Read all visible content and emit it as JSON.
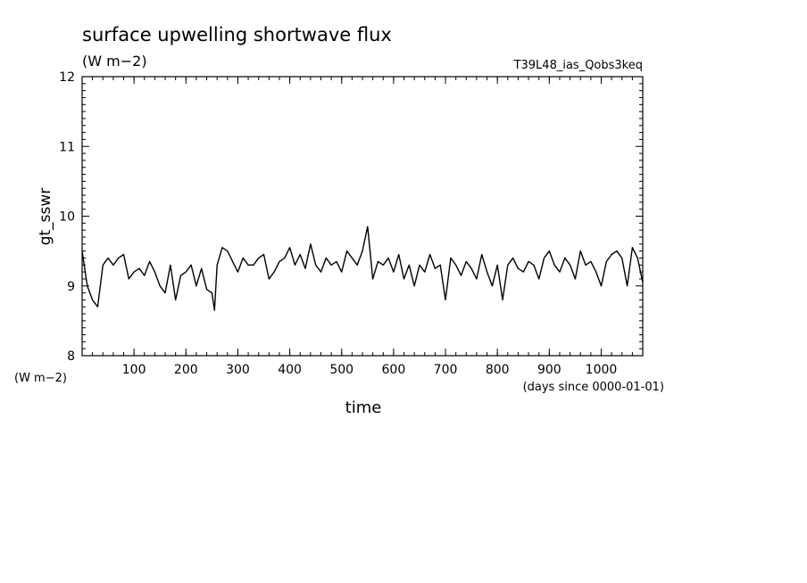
{
  "chart_data": {
    "type": "line",
    "title": "surface upwelling shortwave flux",
    "subtitle_units": "(W m−2)",
    "run_label": "T39L48_ias_Qobs3keq",
    "ylabel": "gt_sswr",
    "yunits": "(W m−2)",
    "xlabel": "time",
    "xunits": "(days since 0000-01-01)",
    "xlim": [
      0,
      1080
    ],
    "ylim": [
      8,
      12
    ],
    "xticks": [
      100,
      200,
      300,
      400,
      500,
      600,
      700,
      800,
      900,
      1000
    ],
    "xtick_labels": [
      "100",
      "200",
      "300",
      "400",
      "500",
      "600",
      "700",
      "800",
      "900",
      "1000"
    ],
    "yticks": [
      8,
      9,
      10,
      11,
      12
    ],
    "ytick_labels": [
      "8",
      "9",
      "10",
      "11",
      "12"
    ],
    "grid": false,
    "series": [
      {
        "color": "#000000",
        "x": [
          0,
          10,
          20,
          30,
          40,
          50,
          60,
          70,
          80,
          90,
          100,
          110,
          120,
          130,
          140,
          150,
          160,
          170,
          180,
          190,
          200,
          210,
          220,
          230,
          240,
          250,
          255,
          260,
          270,
          280,
          290,
          300,
          310,
          320,
          330,
          340,
          350,
          360,
          370,
          380,
          390,
          400,
          410,
          420,
          430,
          440,
          450,
          460,
          470,
          480,
          490,
          500,
          510,
          520,
          530,
          540,
          550,
          560,
          570,
          580,
          590,
          600,
          610,
          620,
          630,
          640,
          650,
          660,
          670,
          680,
          690,
          700,
          710,
          720,
          730,
          740,
          750,
          760,
          770,
          780,
          790,
          800,
          810,
          820,
          830,
          840,
          850,
          860,
          870,
          880,
          890,
          900,
          910,
          920,
          930,
          940,
          950,
          960,
          970,
          980,
          990,
          1000,
          1010,
          1020,
          1030,
          1040,
          1050,
          1060,
          1070,
          1080
        ],
        "y": [
          9.5,
          9.0,
          8.8,
          8.7,
          9.3,
          9.4,
          9.3,
          9.4,
          9.45,
          9.1,
          9.2,
          9.25,
          9.15,
          9.35,
          9.2,
          9.0,
          8.9,
          9.3,
          8.8,
          9.15,
          9.2,
          9.3,
          9.0,
          9.25,
          8.95,
          8.9,
          8.65,
          9.3,
          9.55,
          9.5,
          9.35,
          9.2,
          9.4,
          9.3,
          9.3,
          9.4,
          9.45,
          9.1,
          9.2,
          9.35,
          9.4,
          9.55,
          9.3,
          9.45,
          9.25,
          9.6,
          9.3,
          9.2,
          9.4,
          9.3,
          9.35,
          9.2,
          9.5,
          9.4,
          9.3,
          9.5,
          9.85,
          9.1,
          9.35,
          9.3,
          9.4,
          9.2,
          9.45,
          9.1,
          9.3,
          9.0,
          9.3,
          9.2,
          9.45,
          9.25,
          9.3,
          8.8,
          9.4,
          9.3,
          9.15,
          9.35,
          9.25,
          9.1,
          9.45,
          9.2,
          9.0,
          9.3,
          8.8,
          9.3,
          9.4,
          9.25,
          9.2,
          9.35,
          9.3,
          9.1,
          9.4,
          9.5,
          9.3,
          9.2,
          9.4,
          9.3,
          9.1,
          9.5,
          9.3,
          9.35,
          9.2,
          9.0,
          9.35,
          9.45,
          9.5,
          9.4,
          9.0,
          9.55,
          9.4,
          9.05
        ]
      }
    ]
  }
}
